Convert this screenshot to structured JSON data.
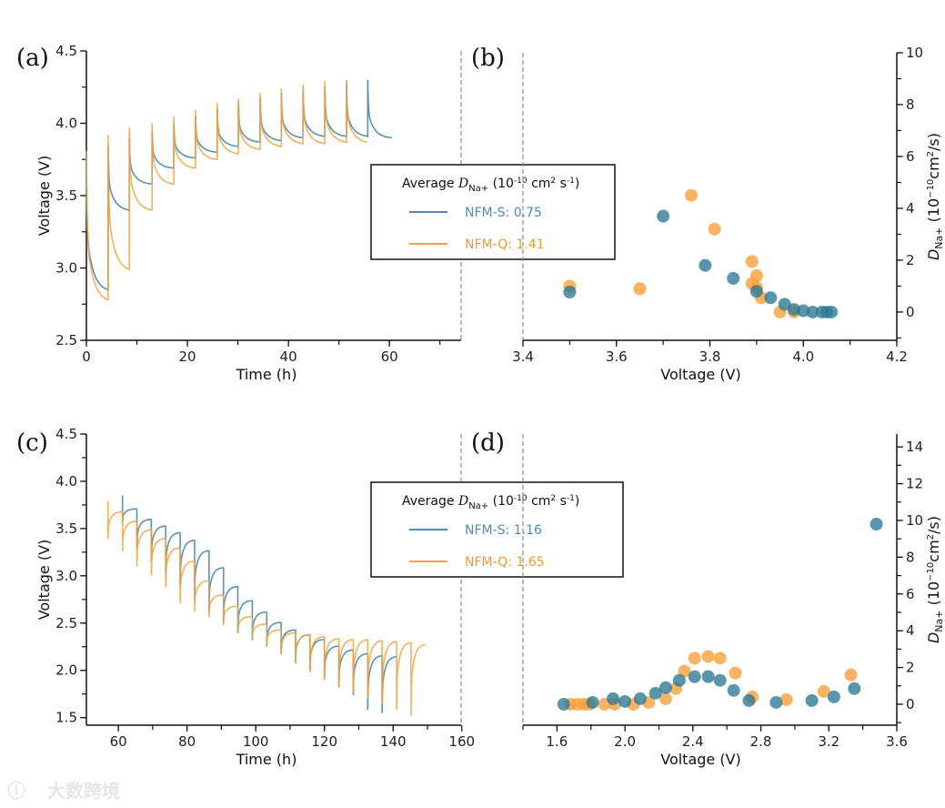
{
  "colors": {
    "nfm_s_line": "#4f8db0",
    "nfm_q_line": "#f5a23f",
    "nfm_s_point": "#2a7893",
    "nfm_q_point": "#f7a03a",
    "dashed": "#888888"
  },
  "watermark": "大数跨境",
  "chart_data": [
    {
      "panel": "(a)",
      "type": "line",
      "xlabel": "Time (h)",
      "ylabel": "Voltage (V)",
      "xlim": [
        0,
        74.2
      ],
      "ylim": [
        2.5,
        4.5
      ],
      "xticks": [
        0,
        20,
        40,
        60
      ],
      "yticks": [
        2.5,
        3.0,
        3.5,
        4.0,
        4.5
      ],
      "legend": {
        "title": "Average",
        "title_symbol": "D",
        "title_sub": "Na+",
        "title_units": "(10",
        "units_exp": "-10",
        "units_rest": " cm",
        "units_exp2": "2",
        "units_s": " s",
        "units_exp3": "-1",
        "units_close": ")",
        "entries": [
          "NFM-S: 0.75",
          "NFM-Q: 1.41"
        ]
      },
      "series": [
        {
          "name": "NFM-S",
          "times": [
            0,
            4.3,
            8.5,
            13,
            17.3,
            21.6,
            25.9,
            30.1,
            34.4,
            38.6,
            42.9,
            47.2,
            51.5,
            55.7,
            60.5
          ],
          "peaks": [
            3.75,
            3.85,
            3.9,
            3.95,
            4.0,
            4.05,
            4.1,
            4.14,
            4.18,
            4.21,
            4.24,
            4.26,
            4.28,
            4.3
          ],
          "lows": [
            2.85,
            3.4,
            3.58,
            3.69,
            3.76,
            3.8,
            3.84,
            3.87,
            3.88,
            3.9,
            3.91,
            3.91,
            3.91,
            3.9
          ]
        },
        {
          "name": "NFM-Q",
          "times": [
            0,
            4.3,
            8.5,
            13,
            17.3,
            21.6,
            25.9,
            30.1,
            34.4,
            38.6,
            42.9,
            47.2,
            51.5,
            55.6
          ],
          "peaks": [
            3.81,
            3.92,
            3.97,
            4.0,
            4.05,
            4.09,
            4.14,
            4.17,
            4.21,
            4.24,
            4.27,
            4.29,
            4.3
          ],
          "lows": [
            2.78,
            2.99,
            3.4,
            3.58,
            3.69,
            3.75,
            3.79,
            3.82,
            3.84,
            3.86,
            3.86,
            3.87,
            3.87
          ]
        }
      ]
    },
    {
      "panel": "(b)",
      "type": "scatter",
      "xlabel": "Voltage (V)",
      "ylabel_symbol": "D",
      "ylabel_sub": "Na+",
      "ylabel_units": "(10",
      "ylabel_exp": "−10",
      "ylabel_rest": "cm",
      "ylabel_exp2": "2",
      "ylabel_end": "/s)",
      "xlim": [
        3.4,
        4.2
      ],
      "ylim": [
        -1.09,
        10
      ],
      "xticks": [
        3.4,
        3.6,
        3.8,
        4.0,
        4.2
      ],
      "yticks": [
        0,
        2,
        4,
        6,
        8,
        10
      ],
      "series": [
        {
          "name": "NFM-S",
          "points": [
            [
              3.5,
              0.77
            ],
            [
              3.7,
              3.7
            ],
            [
              3.79,
              1.8
            ],
            [
              3.85,
              1.3
            ],
            [
              3.9,
              0.8
            ],
            [
              3.93,
              0.55
            ],
            [
              3.96,
              0.3
            ],
            [
              3.98,
              0.1
            ],
            [
              4.0,
              0.05
            ],
            [
              4.02,
              0
            ],
            [
              4.04,
              0
            ],
            [
              4.05,
              0
            ],
            [
              4.06,
              0
            ]
          ]
        },
        {
          "name": "NFM-Q",
          "points": [
            [
              3.5,
              1.0
            ],
            [
              3.65,
              0.9
            ],
            [
              3.76,
              4.5
            ],
            [
              3.81,
              3.2
            ],
            [
              3.89,
              1.95
            ],
            [
              3.9,
              1.4
            ],
            [
              3.89,
              1.1
            ],
            [
              3.9,
              0.95
            ],
            [
              3.91,
              0.55
            ],
            [
              3.95,
              0
            ],
            [
              3.98,
              0
            ]
          ]
        }
      ]
    },
    {
      "panel": "(c)",
      "type": "line",
      "xlabel": "Time (h)",
      "ylabel": "Voltage (V)",
      "xlim": [
        50.7,
        159.8
      ],
      "ylim": [
        1.42,
        4.5
      ],
      "xticks": [
        60,
        80,
        100,
        120,
        140,
        160
      ],
      "yticks": [
        1.5,
        2.0,
        2.5,
        3.0,
        3.5,
        4.0,
        4.5
      ],
      "legend": {
        "title": "Average",
        "title_symbol": "D",
        "title_sub": "Na+",
        "title_units": "(10",
        "units_exp": "-10",
        "units_rest": " cm",
        "units_exp2": "2",
        "units_s": " s",
        "units_exp3": "-1",
        "units_close": ")",
        "entries": [
          "NFM-S: 1.16",
          "NFM-Q: 1.65"
        ]
      },
      "series": [
        {
          "name": "NFM-S",
          "start": 3.85,
          "t0": 61.2,
          "period": 4.2,
          "rests": [
            3.71,
            3.6,
            3.53,
            3.46,
            3.38,
            3.27,
            3.09,
            2.89,
            2.74,
            2.62,
            2.51,
            2.43,
            2.38,
            2.33,
            2.26,
            2.22,
            2.18,
            2.16,
            2.15
          ],
          "dips": [
            3.55,
            3.3,
            3.15,
            3.0,
            2.88,
            2.75,
            2.62,
            2.5,
            2.4,
            2.32,
            2.25,
            2.17,
            2.08,
            1.99,
            1.9,
            1.82,
            1.74,
            1.58,
            1.55
          ]
        },
        {
          "name": "NFM-Q",
          "start": 3.79,
          "t0": 57.0,
          "period": 4.2,
          "rests": [
            3.68,
            3.58,
            3.49,
            3.4,
            3.3,
            3.16,
            2.95,
            2.8,
            2.68,
            2.57,
            2.49,
            2.43,
            2.4,
            2.38,
            2.36,
            2.34,
            2.33,
            2.33,
            2.32,
            2.31,
            2.3,
            2.28
          ],
          "dips": [
            3.39,
            3.26,
            3.1,
            3.0,
            2.88,
            2.71,
            2.62,
            2.56,
            2.48,
            2.39,
            2.33,
            2.26,
            2.17,
            2.07,
            1.98,
            1.9,
            1.83,
            1.76,
            1.7,
            1.64,
            1.58,
            1.52
          ]
        }
      ]
    },
    {
      "panel": "(d)",
      "type": "scatter",
      "xlabel": "Voltage (V)",
      "ylabel_symbol": "D",
      "ylabel_sub": "Na+",
      "ylabel_units": "(10",
      "ylabel_exp": "−10",
      "ylabel_rest": "cm",
      "ylabel_exp2": "2",
      "ylabel_end": "/s)",
      "xlim": [
        1.4,
        3.6
      ],
      "ylim": [
        -1.14,
        14.7
      ],
      "xticks": [
        1.6,
        2.0,
        2.4,
        2.8,
        3.2,
        3.6
      ],
      "yticks": [
        0,
        2,
        4,
        6,
        8,
        10,
        12,
        14
      ],
      "series": [
        {
          "name": "NFM-S",
          "points": [
            [
              1.64,
              0
            ],
            [
              1.81,
              0.1
            ],
            [
              1.93,
              0.3
            ],
            [
              2.0,
              0.15
            ],
            [
              2.09,
              0.3
            ],
            [
              2.18,
              0.6
            ],
            [
              2.24,
              0.9
            ],
            [
              2.32,
              1.3
            ],
            [
              2.41,
              1.5
            ],
            [
              2.49,
              1.5
            ],
            [
              2.56,
              1.3
            ],
            [
              2.64,
              0.75
            ],
            [
              2.73,
              0.2
            ],
            [
              2.89,
              0.1
            ],
            [
              3.1,
              0.2
            ],
            [
              3.23,
              0.4
            ],
            [
              3.35,
              0.85
            ],
            [
              3.48,
              9.8
            ]
          ]
        },
        {
          "name": "NFM-Q",
          "points": [
            [
              1.68,
              0
            ],
            [
              1.72,
              0
            ],
            [
              1.76,
              0
            ],
            [
              1.79,
              0
            ],
            [
              1.88,
              0
            ],
            [
              1.94,
              0
            ],
            [
              2.05,
              0
            ],
            [
              2.14,
              0.1
            ],
            [
              2.24,
              0.3
            ],
            [
              2.3,
              0.85
            ],
            [
              2.35,
              1.8
            ],
            [
              2.41,
              2.5
            ],
            [
              2.49,
              2.6
            ],
            [
              2.56,
              2.5
            ],
            [
              2.65,
              1.7
            ],
            [
              2.75,
              0.4
            ],
            [
              2.95,
              0.25
            ],
            [
              3.17,
              0.7
            ],
            [
              3.33,
              1.6
            ]
          ]
        }
      ]
    }
  ]
}
